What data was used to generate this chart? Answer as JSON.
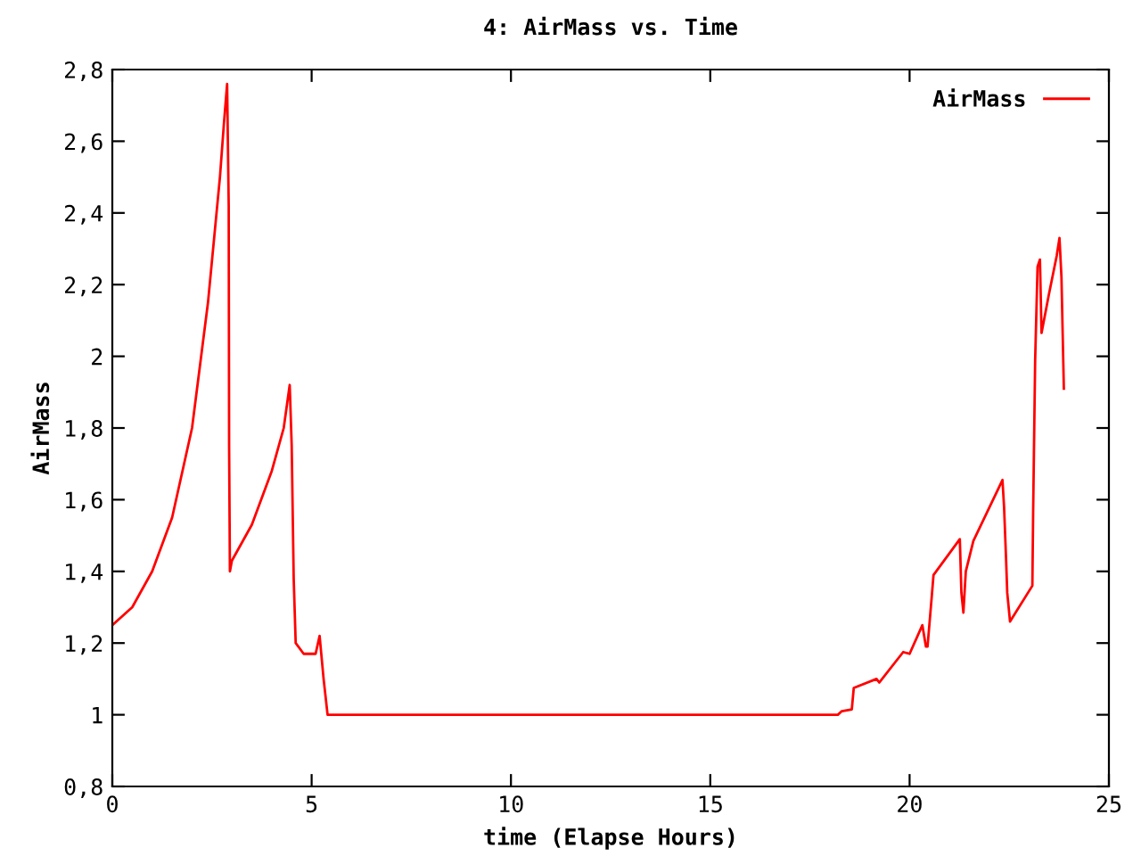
{
  "chart_data": {
    "type": "line",
    "title": "4: AirMass vs. Time",
    "xlabel": "time (Elapse Hours)",
    "ylabel": "AirMass",
    "series": [
      {
        "name": "AirMass",
        "color": "#ff0000",
        "x": [
          0,
          0.5,
          1.0,
          1.5,
          2.0,
          2.4,
          2.7,
          2.8,
          2.88,
          2.92,
          2.93,
          2.95,
          3.0,
          3.5,
          4.0,
          4.3,
          4.45,
          4.5,
          4.55,
          4.6,
          4.8,
          5.1,
          5.2,
          5.3,
          5.4,
          18.2,
          18.3,
          18.55,
          18.6,
          19.17,
          19.24,
          19.84,
          20.0,
          20.32,
          20.41,
          20.45,
          20.56,
          20.6,
          21.26,
          21.3,
          21.35,
          21.41,
          21.6,
          22.33,
          22.37,
          22.42,
          22.45,
          22.52,
          23.08,
          23.1,
          23.15,
          23.21,
          23.27,
          23.31,
          23.49,
          23.69,
          23.76,
          23.81,
          23.87
        ],
        "values": [
          1.25,
          1.3,
          1.4,
          1.55,
          1.8,
          2.15,
          2.5,
          2.65,
          2.76,
          2.42,
          1.75,
          1.4,
          1.43,
          1.53,
          1.68,
          1.8,
          1.92,
          1.75,
          1.38,
          1.2,
          1.17,
          1.17,
          1.22,
          1.1,
          1.0,
          1.0,
          1.01,
          1.015,
          1.075,
          1.1,
          1.09,
          1.175,
          1.17,
          1.25,
          1.19,
          1.19,
          1.335,
          1.39,
          1.49,
          1.34,
          1.285,
          1.4,
          1.485,
          1.655,
          1.58,
          1.435,
          1.34,
          1.26,
          1.36,
          1.57,
          1.99,
          2.25,
          2.27,
          2.065,
          2.17,
          2.28,
          2.33,
          2.22,
          1.91
        ]
      }
    ],
    "xlim": [
      0,
      25
    ],
    "xticks": [
      0,
      5,
      10,
      15,
      20,
      25
    ],
    "ylim": [
      0.8,
      2.8
    ],
    "yticks": [
      {
        "value": 0.8,
        "label": "0,8"
      },
      1,
      {
        "value": 1.2,
        "label": "1,2"
      },
      {
        "value": 1.4,
        "label": "1,4"
      },
      {
        "value": 1.6,
        "label": "1,6"
      },
      {
        "value": 1.8,
        "label": "1,8"
      },
      2,
      {
        "value": 2.2,
        "label": "2,2"
      },
      {
        "value": 2.4,
        "label": "2,4"
      },
      {
        "value": 2.6,
        "label": "2,6"
      },
      {
        "value": 2.8,
        "label": "2,8"
      }
    ],
    "grid": false,
    "legend": "top right",
    "marker": "none",
    "line_style": "solid"
  }
}
